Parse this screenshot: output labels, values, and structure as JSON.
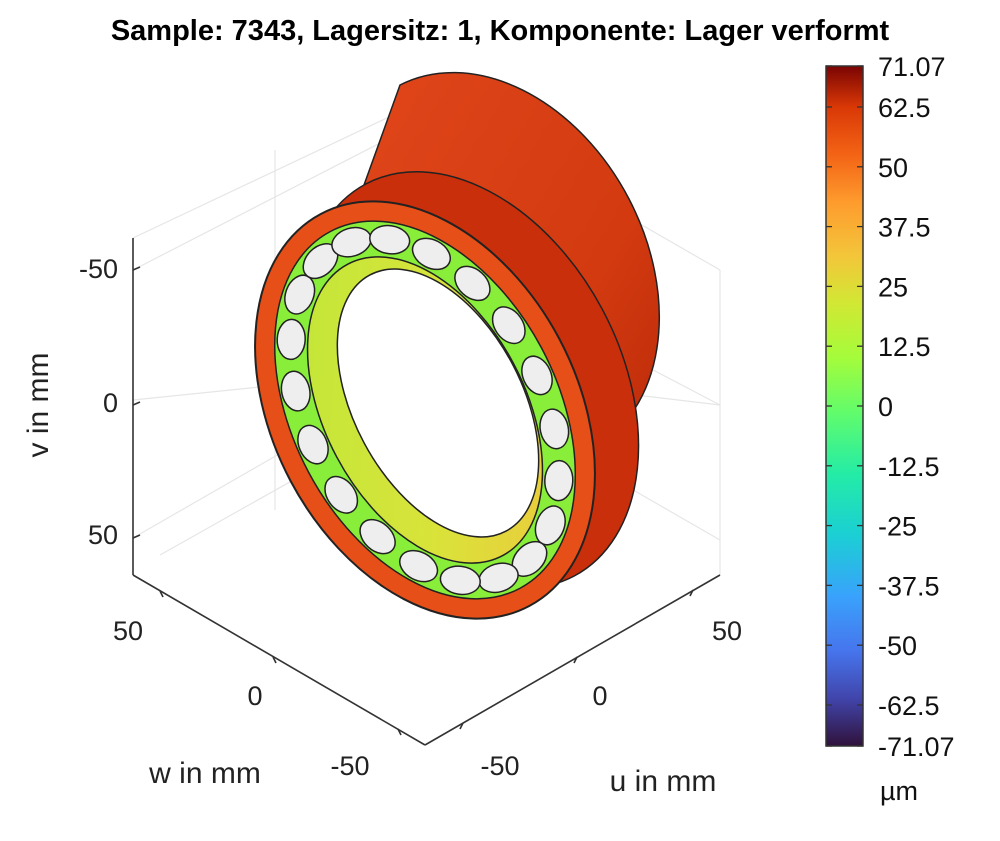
{
  "chart_data": {
    "type": "surface3d",
    "title": "Sample: 7343, Lagersitz: 1, Komponente: Lager verformt",
    "component": "Lager verformt",
    "axes": {
      "u": {
        "label": "u in mm",
        "ticks": [
          -50,
          0,
          50
        ],
        "tick_labels": [
          "-50",
          "0",
          "50"
        ]
      },
      "w": {
        "label": "w in mm",
        "ticks": [
          50,
          0,
          -50
        ],
        "tick_labels": [
          "50",
          "0",
          "-50"
        ]
      },
      "v": {
        "label": "v in mm",
        "ticks": [
          -50,
          0,
          50
        ],
        "tick_labels": [
          "-50",
          "0",
          "50"
        ]
      }
    },
    "grid": true,
    "colorbar": {
      "placement": "right",
      "unit": "µm",
      "range": [
        -71.07,
        71.07
      ],
      "tick_values": [
        71.07,
        62.5,
        50,
        37.5,
        25,
        12.5,
        0,
        -12.5,
        -25,
        -37.5,
        -50,
        -62.5,
        -71.07
      ],
      "tick_labels": [
        "71.07",
        "62.5",
        "50",
        "37.5",
        "25",
        "12.5",
        "0",
        "-12.5",
        "-25",
        "-37.5",
        "-50",
        "-62.5",
        "-71.07"
      ],
      "colormap": "jet"
    },
    "bearing": {
      "rolling_elements": 20,
      "outer_ring_deformation_um": 55,
      "cage_deformation_um": 5,
      "inner_ring_deformation_um": [
        8,
        22
      ]
    }
  }
}
